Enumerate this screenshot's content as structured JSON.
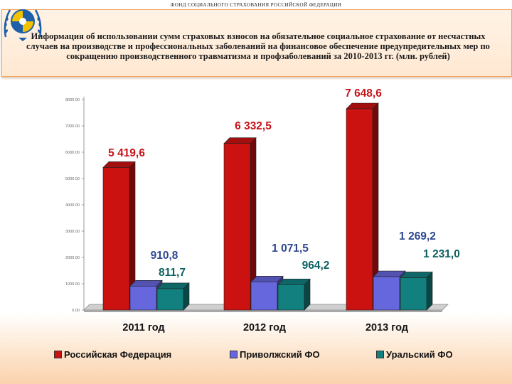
{
  "header": {
    "org_name": "Фонд социального страхования Российской Федерации",
    "title": "Информация об использовании сумм страховых взносов на обязательное социальное страхование от несчастных случаев на производстве и профессиональных заболеваний на финансовое обеспечение предупредительных мер по сокращению производственного травматизма и профзаболеваний за 2010-2013 гг. (млн. рублей)"
  },
  "colors": {
    "russia": "#cc1111",
    "privolzhsky": "#6666dd",
    "ural": "#11807f",
    "label_blue": "#2e4790",
    "label_teal": "#0e6060"
  },
  "chart_data": {
    "type": "bar",
    "categories": [
      "2011 год",
      "2012 год",
      "2013 год"
    ],
    "series": [
      {
        "name": "Российская Федерация",
        "values": [
          5419.6,
          6332.5,
          7648.6
        ],
        "labels": [
          "5 419,6",
          "6 332,5",
          "7 648,6"
        ]
      },
      {
        "name": "Приволжский ФО",
        "values": [
          910.8,
          1071.5,
          1269.2
        ],
        "labels": [
          "910,8",
          "1 071,5",
          "1 269,2"
        ]
      },
      {
        "name": "Уральский ФО",
        "values": [
          811.7,
          964.2,
          1231.0
        ],
        "labels": [
          "811,7",
          "964,2",
          "1 231,0"
        ]
      }
    ],
    "yticks": [
      "0.00",
      "1000.00",
      "2000.00",
      "3000.00",
      "4000.00",
      "5000.00",
      "6000.00",
      "7000.00",
      "8000.00"
    ],
    "ylim": [
      0,
      8000
    ],
    "grid": false,
    "legend_position": "bottom"
  }
}
